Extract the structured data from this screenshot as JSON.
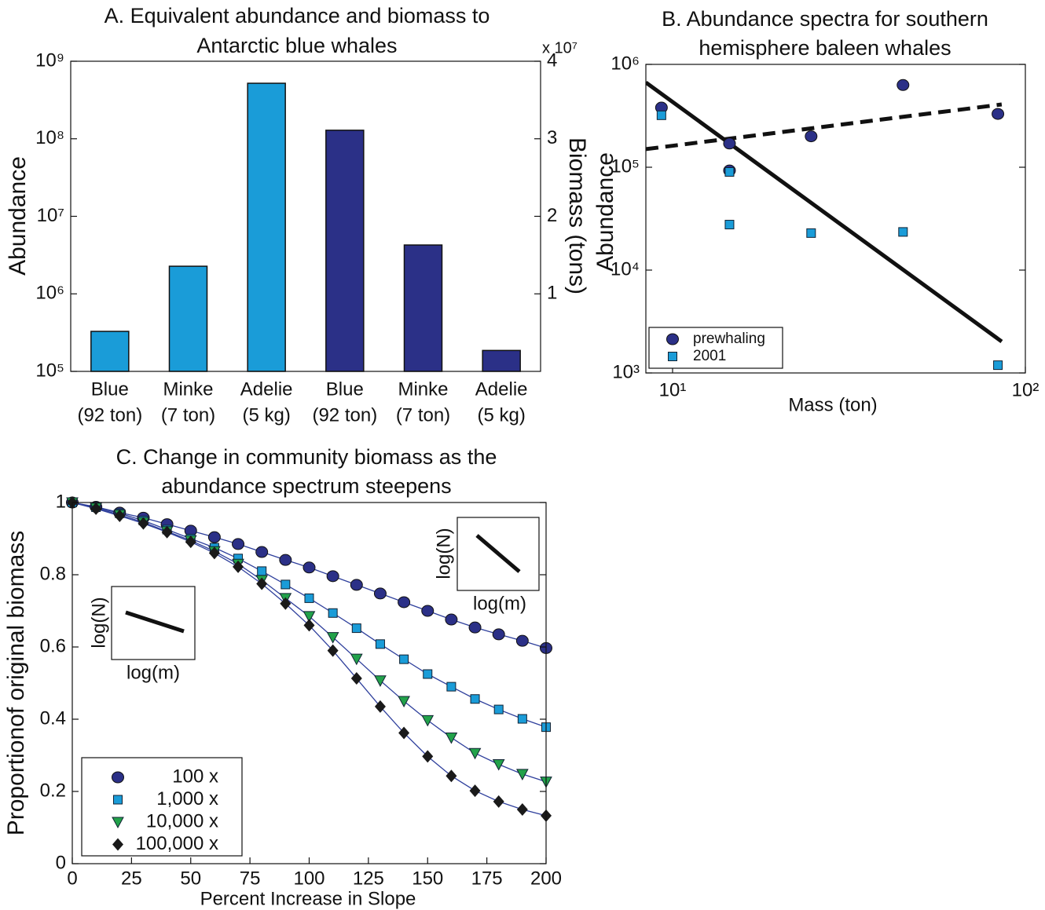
{
  "chart_data": [
    {
      "type": "bar",
      "title": [
        "A. Equivalent abundance and biomass to",
        "Antarctic blue whales"
      ],
      "ylabel": "Abundance",
      "y2label": "Biomass (tons)",
      "y2_multiplier": "x 10⁷",
      "categories": [
        [
          "Blue",
          "(92 ton)"
        ],
        [
          "Minke",
          "(7 ton)"
        ],
        [
          "Adelie",
          "(5 kg)"
        ],
        [
          "Blue",
          "(92 ton)"
        ],
        [
          "Minke",
          "(7 ton)"
        ],
        [
          "Adelie",
          "(5 kg)"
        ]
      ],
      "series": [
        {
          "color": "#1a9cd8",
          "axis": "y",
          "values": [
            328000,
            2270000,
            520000000,
            null,
            null,
            null
          ]
        },
        {
          "color": "#2b3087",
          "axis": "y2",
          "values": [
            null,
            null,
            null,
            31100000,
            16300000,
            2700000
          ]
        }
      ],
      "ylog": true,
      "ylim": [
        100000,
        1000000000
      ],
      "yticks": [
        {
          "value": 100000,
          "label": "10⁵"
        },
        {
          "value": 1000000,
          "label": "10⁶"
        },
        {
          "value": 10000000,
          "label": "10⁷"
        },
        {
          "value": 100000000,
          "label": "10⁸"
        },
        {
          "value": 1000000000,
          "label": "10⁹"
        }
      ],
      "y2lim": [
        0,
        40000000
      ],
      "y2ticks": [
        {
          "value": 10000000,
          "label": "1"
        },
        {
          "value": 20000000,
          "label": "2"
        },
        {
          "value": 30000000,
          "label": "3"
        },
        {
          "value": 40000000,
          "label": "4"
        }
      ]
    },
    {
      "type": "scatter",
      "title": [
        "B. Abundance spectra for southern",
        "hemisphere baleen whales"
      ],
      "xlabel": "Mass (ton)",
      "ylabel": "Abundance",
      "xlog": true,
      "ylog": true,
      "xlim": [
        8.4,
        100
      ],
      "ylim": [
        1000,
        1000000
      ],
      "xticks": [
        {
          "value": 10,
          "label": "10¹"
        },
        {
          "value": 100,
          "label": "10²"
        }
      ],
      "yticks": [
        {
          "value": 1000,
          "label": "10³"
        },
        {
          "value": 10000,
          "label": "10⁴"
        },
        {
          "value": 100000,
          "label": "10⁵"
        },
        {
          "value": 1000000,
          "label": "10⁶"
        }
      ],
      "legend": "lower left",
      "series": [
        {
          "name": "prewhaling",
          "color": "#2b3087",
          "marker": "circle",
          "x": [
            9.3,
            14.5,
            14.5,
            24.7,
            45,
            83.6
          ],
          "values": [
            380000,
            170000,
            93000,
            200000,
            630000,
            330000
          ]
        },
        {
          "name": "2001",
          "color": "#1a9cd8",
          "marker": "square",
          "x": [
            9.3,
            14.5,
            14.5,
            24.7,
            45,
            83.6
          ],
          "values": [
            320000,
            90000,
            27700,
            22900,
            23500,
            1190
          ]
        },
        {
          "style": "solid",
          "color": "#111111",
          "x": [
            8.4,
            85.7
          ],
          "values": [
            667000,
            2020
          ]
        },
        {
          "style": "dashed",
          "color": "#111111",
          "x": [
            8.4,
            85.7
          ],
          "values": [
            150000,
            408000
          ]
        }
      ]
    },
    {
      "type": "line",
      "title": [
        "C. Change in community biomass as the",
        "abundance spectrum steepens"
      ],
      "xlabel": "Percent Increase in Slope",
      "ylabel": "Proportionof original biomass",
      "xlim": [
        0,
        200
      ],
      "xticks": [
        0,
        25,
        50,
        75,
        100,
        125,
        150,
        175,
        200
      ],
      "ylim": [
        0,
        1
      ],
      "yticks": [
        0,
        0.2,
        0.4,
        0.6,
        0.8,
        1
      ],
      "legend": "lower left",
      "line_color": "#2e3f9c",
      "x": [
        0,
        10,
        20,
        30,
        40,
        50,
        60,
        70,
        80,
        90,
        100,
        110,
        120,
        130,
        140,
        150,
        160,
        170,
        180,
        190,
        200
      ],
      "series": [
        {
          "name": "100 x",
          "color": "#2b3087",
          "marker": "circle",
          "values": [
            1,
            0.988,
            0.972,
            0.958,
            0.94,
            0.922,
            0.904,
            0.885,
            0.863,
            0.841,
            0.82,
            0.796,
            0.772,
            0.748,
            0.724,
            0.7,
            0.676,
            0.654,
            0.635,
            0.617,
            0.597
          ]
        },
        {
          "name": "1,000 x",
          "color": "#1a9cd8",
          "marker": "square",
          "values": [
            1,
            0.987,
            0.97,
            0.95,
            0.925,
            0.9,
            0.875,
            0.845,
            0.81,
            0.773,
            0.735,
            0.694,
            0.652,
            0.608,
            0.566,
            0.525,
            0.49,
            0.456,
            0.427,
            0.401,
            0.378
          ]
        },
        {
          "name": "10,000 x",
          "color": "#22a24a",
          "marker": "triangle",
          "values": [
            1,
            0.985,
            0.966,
            0.945,
            0.92,
            0.895,
            0.865,
            0.83,
            0.785,
            0.735,
            0.685,
            0.627,
            0.567,
            0.507,
            0.45,
            0.397,
            0.349,
            0.306,
            0.275,
            0.248,
            0.227
          ]
        },
        {
          "name": "100,000 x",
          "color": "#1a1a1a",
          "marker": "diamond",
          "values": [
            1,
            0.983,
            0.963,
            0.942,
            0.918,
            0.891,
            0.86,
            0.822,
            0.775,
            0.72,
            0.66,
            0.59,
            0.513,
            0.435,
            0.362,
            0.297,
            0.243,
            0.202,
            0.172,
            0.15,
            0.133
          ]
        }
      ],
      "insets": [
        {
          "ylabel": "log(N)",
          "xlabel": "log(m)"
        },
        {
          "ylabel": "log(N)",
          "xlabel": "log(m)"
        }
      ]
    }
  ]
}
